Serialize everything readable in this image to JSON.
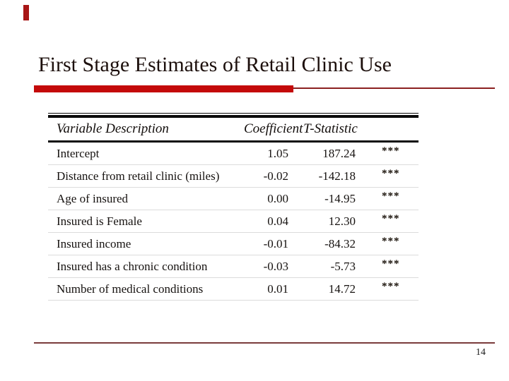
{
  "slide": {
    "title": "First Stage Estimates of Retail Clinic Use",
    "page_number": "14"
  },
  "colors": {
    "accent_red": "#c40a0a",
    "thin_line_red": "#8b2020",
    "bottom_line_red": "#7a3b3b",
    "corner_accent_red": "#a81616",
    "table_rule_black": "#0a0a0a",
    "row_separator_gray": "#dcdcdc"
  },
  "chart_data": {
    "type": "table",
    "title": "First Stage Estimates of Retail Clinic Use",
    "headers": [
      "Variable Description",
      "Coefficient",
      "T-Statistic",
      ""
    ],
    "rows": [
      {
        "variable": "Intercept",
        "coefficient": "1.05",
        "t_statistic": "187.24",
        "significance": "***"
      },
      {
        "variable": "Distance from retail clinic (miles)",
        "coefficient": "-0.02",
        "t_statistic": "-142.18",
        "significance": "***"
      },
      {
        "variable": "Age of insured",
        "coefficient": "0.00",
        "t_statistic": "-14.95",
        "significance": "***"
      },
      {
        "variable": "Insured is Female",
        "coefficient": "0.04",
        "t_statistic": "12.30",
        "significance": "***"
      },
      {
        "variable": "Insured income",
        "coefficient": "-0.01",
        "t_statistic": "-84.32",
        "significance": "***"
      },
      {
        "variable": "Insured has a chronic condition",
        "coefficient": "-0.03",
        "t_statistic": "-5.73",
        "significance": "***"
      },
      {
        "variable": "Number of medical conditions",
        "coefficient": "0.01",
        "t_statistic": "14.72",
        "significance": "***"
      }
    ]
  }
}
